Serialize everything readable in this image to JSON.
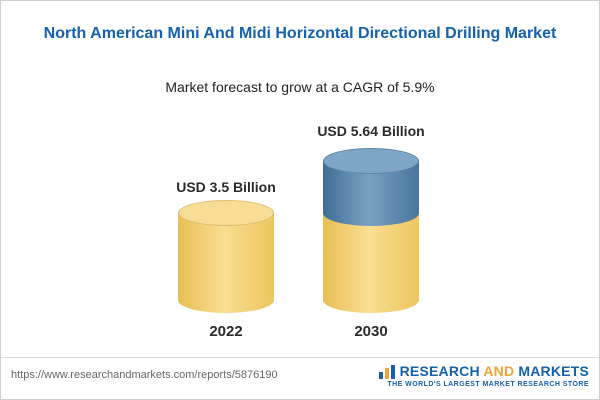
{
  "header": {
    "title": "North American Mini And Midi Horizontal Directional Drilling Market",
    "subtitle": "Market forecast to grow at a CAGR of 5.9%"
  },
  "chart_data": {
    "type": "bar",
    "subtype": "cylinder",
    "categories": [
      "2022",
      "2030"
    ],
    "values": [
      3.5,
      5.64
    ],
    "unit": "USD Billion",
    "data_labels": [
      "USD 3.5 Billion",
      "USD 5.64 Billion"
    ],
    "cagr": "5.9%",
    "title": "North American Mini And Midi Horizontal Directional Drilling Market",
    "subtitle": "Market forecast to grow at a CAGR of 5.9%",
    "ylim": [
      0,
      6
    ],
    "grid": false,
    "legend": false,
    "colors": {
      "bar_2022": "#f3cf6e",
      "bar_2030_base": "#f3cf6e",
      "bar_2030_growth": "#4e7da6"
    }
  },
  "footer": {
    "url": "https://www.researchandmarkets.com/reports/5876190",
    "logo": {
      "word1": "RESEARCH",
      "word2": "AND",
      "word3": "MARKETS",
      "tagline": "THE WORLD'S LARGEST MARKET RESEARCH STORE"
    }
  },
  "colors": {
    "title_blue": "#1461ac",
    "logo_orange": "#f2a33a"
  }
}
